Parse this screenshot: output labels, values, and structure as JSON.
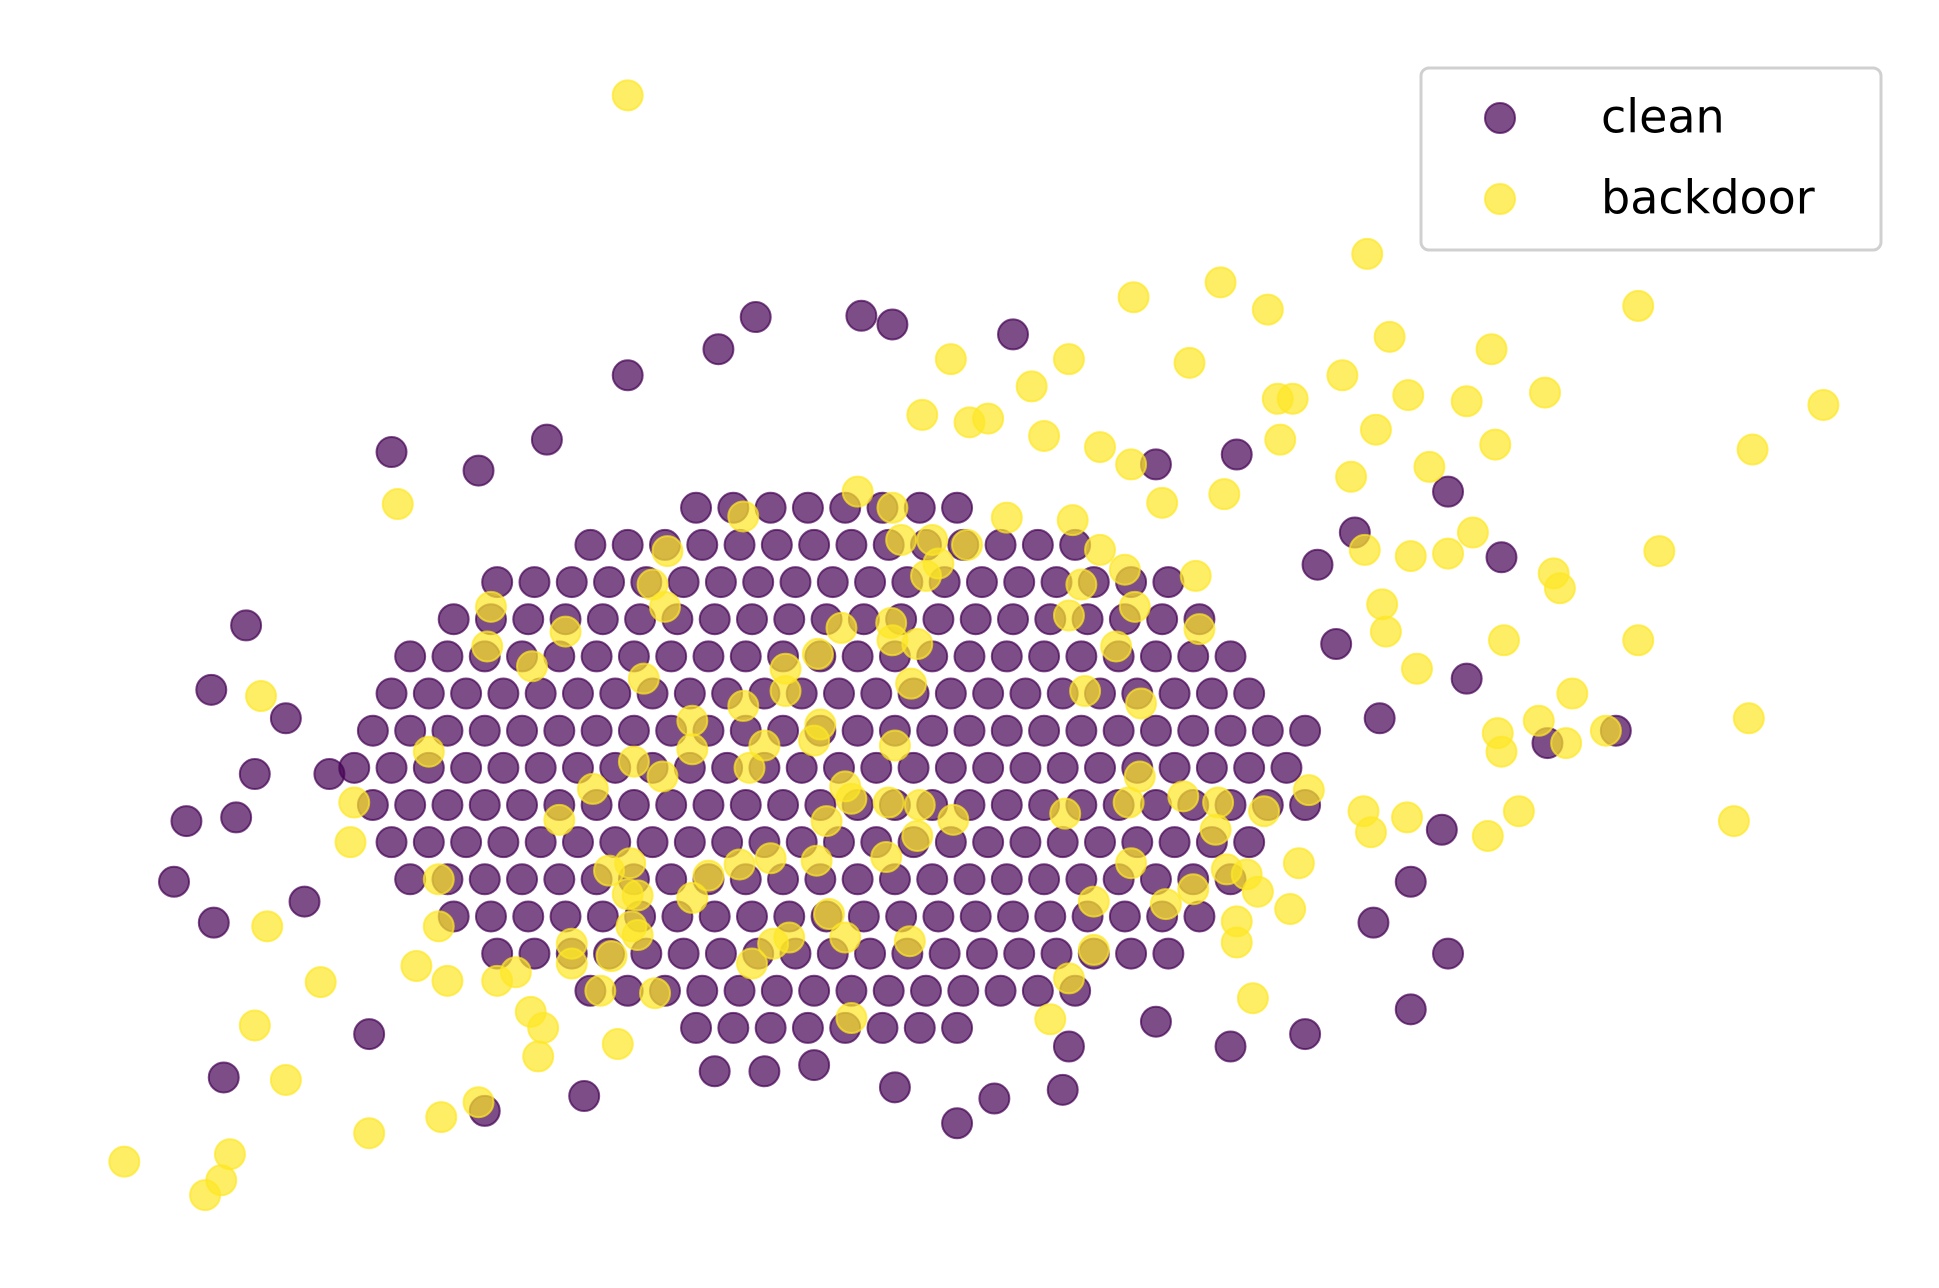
{
  "chart_data": {
    "type": "scatter",
    "xlim": [
      0,
      156
    ],
    "ylim": [
      0,
      104
    ],
    "legend": "upper right",
    "alpha": 0.7,
    "series": [
      {
        "name": "clean",
        "color": "#440154",
        "x": [
          56,
          59,
          62,
          65,
          68,
          71,
          74,
          77,
          47.5,
          50.5,
          53.5,
          56.5,
          59.5,
          62.5,
          65.5,
          68.5,
          71.5,
          74.5,
          77.5,
          80.5,
          83.5,
          86.5,
          40,
          43,
          46,
          49,
          52,
          55,
          58,
          61,
          64,
          67,
          70,
          73,
          76,
          79,
          82,
          85,
          88,
          91,
          94,
          36.5,
          39.5,
          42.5,
          45.5,
          48.5,
          51.5,
          54.5,
          57.5,
          60.5,
          63.5,
          66.5,
          69.5,
          72.5,
          75.5,
          78.5,
          81.5,
          84.5,
          87.5,
          90.5,
          93.5,
          96.5,
          33,
          36,
          39,
          42,
          45,
          48,
          51,
          54,
          57,
          60,
          63,
          66,
          69,
          72,
          75,
          78,
          81,
          84,
          87,
          90,
          93,
          96,
          99,
          31.5,
          34.5,
          37.5,
          40.5,
          43.5,
          46.5,
          49.5,
          52.5,
          55.5,
          58.5,
          61.5,
          64.5,
          67.5,
          70.5,
          73.5,
          76.5,
          79.5,
          82.5,
          85.5,
          88.5,
          91.5,
          94.5,
          97.5,
          100.5,
          30,
          33,
          36,
          39,
          42,
          45,
          48,
          51,
          54,
          57,
          60,
          63,
          66,
          69,
          72,
          75,
          78,
          81,
          84,
          87,
          90,
          93,
          96,
          99,
          102,
          105,
          28.5,
          31.5,
          34.5,
          37.5,
          40.5,
          43.5,
          46.5,
          49.5,
          52.5,
          55.5,
          58.5,
          61.5,
          64.5,
          67.5,
          70.5,
          73.5,
          76.5,
          79.5,
          82.5,
          85.5,
          88.5,
          91.5,
          94.5,
          97.5,
          100.5,
          103.5,
          30,
          33,
          36,
          39,
          42,
          45,
          48,
          51,
          54,
          57,
          60,
          63,
          66,
          69,
          72,
          75,
          78,
          81,
          84,
          87,
          90,
          93,
          96,
          99,
          102,
          105,
          31.5,
          34.5,
          37.5,
          40.5,
          43.5,
          46.5,
          49.5,
          52.5,
          55.5,
          58.5,
          61.5,
          64.5,
          67.5,
          70.5,
          73.5,
          76.5,
          79.5,
          82.5,
          85.5,
          88.5,
          91.5,
          94.5,
          97.5,
          100.5,
          33,
          36,
          39,
          42,
          45,
          48,
          51,
          54,
          57,
          60,
          63,
          66,
          69,
          72,
          75,
          78,
          81,
          84,
          87,
          90,
          93,
          96,
          99,
          36.5,
          39.5,
          42.5,
          45.5,
          48.5,
          51.5,
          54.5,
          57.5,
          60.5,
          63.5,
          66.5,
          69.5,
          72.5,
          75.5,
          78.5,
          81.5,
          84.5,
          87.5,
          90.5,
          93.5,
          96.5,
          40,
          43,
          46,
          49,
          52,
          55,
          58,
          61,
          64,
          67,
          70,
          73,
          76,
          79,
          82,
          85,
          88,
          91,
          94,
          47.5,
          50.5,
          53.5,
          56.5,
          59.5,
          62.5,
          65.5,
          68.5,
          71.5,
          74.5,
          77.5,
          80.5,
          83.5,
          86.5,
          56,
          59,
          62,
          65,
          68,
          71,
          74,
          77,
          14,
          15,
          17,
          19.8,
          18,
          17.2,
          24.5,
          31.5,
          50.5,
          60.8,
          69.3,
          71.8,
          81.5,
          57.8,
          99.5,
          116.5,
          120.8,
          118,
          130,
          113.5,
          116.5,
          105,
          99,
          85.5,
          77,
          80,
          72,
          61.5,
          47,
          39,
          29.7,
          110.5,
          113.5,
          116,
          111,
          109,
          93,
          44,
          38.5,
          23,
          20.5,
          19,
          26.5,
          124.5,
          106,
          107.5,
          93,
          86,
          57.5,
          65.5
        ],
        "values": [
          21,
          21,
          21,
          21,
          21,
          21,
          21,
          21,
          24,
          24,
          24,
          24,
          24,
          24,
          24,
          24,
          24,
          24,
          24,
          24,
          24,
          24,
          27,
          27,
          27,
          27,
          27,
          27,
          27,
          27,
          27,
          27,
          27,
          27,
          27,
          27,
          27,
          27,
          27,
          27,
          27,
          30,
          30,
          30,
          30,
          30,
          30,
          30,
          30,
          30,
          30,
          30,
          30,
          30,
          30,
          30,
          30,
          30,
          30,
          30,
          30,
          30,
          33,
          33,
          33,
          33,
          33,
          33,
          33,
          33,
          33,
          33,
          33,
          33,
          33,
          33,
          33,
          33,
          33,
          33,
          33,
          33,
          33,
          33,
          33,
          36,
          36,
          36,
          36,
          36,
          36,
          36,
          36,
          36,
          36,
          36,
          36,
          36,
          36,
          36,
          36,
          36,
          36,
          36,
          36,
          36,
          36,
          36,
          36,
          39,
          39,
          39,
          39,
          39,
          39,
          39,
          39,
          39,
          39,
          39,
          39,
          39,
          39,
          39,
          39,
          39,
          39,
          39,
          39,
          39,
          39,
          39,
          39,
          39,
          39,
          42,
          42,
          42,
          42,
          42,
          42,
          42,
          42,
          42,
          42,
          42,
          42,
          42,
          42,
          42,
          42,
          42,
          42,
          42,
          42,
          42,
          42,
          42,
          42,
          42,
          42,
          45,
          45,
          45,
          45,
          45,
          45,
          45,
          45,
          45,
          45,
          45,
          45,
          45,
          45,
          45,
          45,
          45,
          45,
          45,
          45,
          45,
          45,
          45,
          45,
          45,
          45,
          48,
          48,
          48,
          48,
          48,
          48,
          48,
          48,
          48,
          48,
          48,
          48,
          48,
          48,
          48,
          48,
          48,
          48,
          48,
          48,
          48,
          48,
          48,
          48,
          51,
          51,
          51,
          51,
          51,
          51,
          51,
          51,
          51,
          51,
          51,
          51,
          51,
          51,
          51,
          51,
          51,
          51,
          51,
          51,
          51,
          51,
          51,
          54,
          54,
          54,
          54,
          54,
          54,
          54,
          54,
          54,
          54,
          54,
          54,
          54,
          54,
          54,
          54,
          54,
          54,
          54,
          54,
          54,
          57,
          57,
          57,
          57,
          57,
          57,
          57,
          57,
          57,
          57,
          57,
          57,
          57,
          57,
          57,
          57,
          57,
          57,
          57,
          60,
          60,
          60,
          60,
          60,
          60,
          60,
          60,
          60,
          60,
          60,
          60,
          60,
          60,
          63,
          63,
          63,
          63,
          63,
          63,
          63,
          63,
          32.8,
          37.7,
          48.3,
          53.5,
          17,
          29.5,
          31.2,
          67.5,
          73.7,
          78.4,
          78.5,
          77.8,
          77,
          75.8,
          67.3,
          64.3,
          59,
          49.2,
          45,
          22.5,
          27,
          20.5,
          19.5,
          16,
          13.3,
          15.3,
          16.2,
          17.5,
          15.5,
          14.3,
          20.5,
          29.5,
          32.8,
          37,
          46,
          61,
          66.5,
          68.5,
          66,
          46,
          41.5,
          38,
          41.5,
          44,
          58.4,
          52,
          21.5,
          19.5,
          17.5,
          18
        ]
      },
      {
        "name": "backdoor",
        "color": "#fde725",
        "x": [
          50.5,
          91.2,
          98.2,
          102,
          110,
          131.8,
          111.8,
          120,
          146.7,
          141,
          124.3,
          118,
          113.3,
          108,
          104,
          102.8,
          95.7,
          86,
          83,
          76.5,
          74.2,
          78,
          79.5,
          84,
          88.5,
          91,
          103,
          110.7,
          120.3,
          108.7,
          115,
          98.5,
          93.5,
          118.5,
          116.5,
          113.5,
          109.8,
          133.5,
          125,
          125.5,
          111.2,
          111.5,
          121,
          131.8,
          114,
          126.5,
          140.7,
          123.8,
          120.5,
          120.8,
          126,
          129.2,
          122.2,
          119.7,
          139.5,
          109.7,
          110.3,
          113.2,
          105.3,
          101.7,
          98,
          97.8,
          95.2,
          90.8,
          91.7,
          91,
          96,
          98.7,
          100.3,
          101.2,
          103.8,
          104.5,
          99.5,
          99.5,
          100.8,
          93.8,
          88,
          88,
          86,
          84.5,
          85.7,
          91.8,
          87.3,
          89.8,
          86,
          87,
          91.3,
          96.5,
          96.2,
          90.5,
          88.5,
          86.3,
          81,
          77.8,
          75,
          74.5,
          75.5,
          72.5,
          71.8,
          69,
          59.8,
          53.7,
          52.5,
          53.5,
          39.5,
          39.2,
          42.8,
          45.5,
          51.8,
          67.7,
          65.8,
          63.2,
          63.2,
          71.7,
          71.8,
          73.8,
          73.3,
          72,
          66,
          65.5,
          61.5,
          60.3,
          59.8,
          55.7,
          55.7,
          53.3,
          51,
          47.7,
          45,
          34.5,
          28.5,
          28.2,
          21,
          32,
          35.3,
          35.3,
          33.5,
          36,
          40,
          41.5,
          42.7,
          43.7,
          43.3,
          38.5,
          35.5,
          29.7,
          23,
          20.5,
          21.5,
          25.8,
          18.5,
          17.8,
          16.5,
          10,
          46,
          46,
          49.2,
          48.3,
          49.7,
          52.7,
          50.8,
          51.3,
          50.5,
          49,
          50.7,
          51.3,
          55.7,
          57,
          59.5,
          62,
          65.7,
          66.7,
          68,
          63.5,
          62.2,
          60.5,
          73.2,
          71.3,
          73.8,
          74,
          76.7,
          71.5,
          68.5,
          66.5,
          68,
          68.5
        ],
        "values": [
          96.3,
          80,
          81.2,
          79,
          83.5,
          79.3,
          76.8,
          75.8,
          71.3,
          67.7,
          72.3,
          71.6,
          72.1,
          73.7,
          71.8,
          71.8,
          74.7,
          75,
          72.8,
          75,
          70.5,
          69.9,
          70.2,
          68.8,
          67.9,
          66.5,
          68.5,
          69.3,
          68.1,
          65.5,
          66.3,
          64.1,
          63.4,
          61,
          59.3,
          59.1,
          59.6,
          59.5,
          57.7,
          56.5,
          55.2,
          53,
          52.3,
          52.3,
          50,
          48,
          46,
          45.8,
          44.8,
          43.3,
          44,
          45,
          38.5,
          36.5,
          37.7,
          38.5,
          36.8,
          38,
          40.2,
          38.5,
          39.2,
          37,
          39.7,
          39.2,
          41.3,
          34.3,
          32.2,
          33.8,
          33.4,
          32,
          30.6,
          34.3,
          29.6,
          27.9,
          23.4,
          31,
          31.2,
          27.3,
          25,
          21.7,
          38.3,
          47.2,
          48.2,
          51.8,
          54.3,
          56.8,
          55,
          53.2,
          57.5,
          58,
          59.6,
          62,
          62.2,
          60,
          60.4,
          57.5,
          58.5,
          60.4,
          63,
          64.3,
          62.3,
          59.5,
          56.8,
          55,
          55,
          51.8,
          50.2,
          53,
          49.2,
          53.3,
          51.2,
          50,
          48.2,
          53.7,
          52.3,
          52,
          48.8,
          43.8,
          45.5,
          44.2,
          43.8,
          42,
          47,
          45.8,
          43.5,
          41.3,
          42.5,
          40.3,
          37.8,
          43.3,
          39.2,
          36,
          47.8,
          63.3,
          33,
          29.2,
          26,
          24.8,
          24.8,
          25.5,
          22.3,
          21,
          18.7,
          15,
          13.8,
          12.5,
          16.8,
          21.2,
          29.2,
          24.7,
          10.8,
          8.7,
          7.5,
          10.2,
          27.8,
          26.2,
          26.8,
          24,
          19.7,
          23.8,
          29.2,
          28.5,
          31.8,
          33.7,
          34.3,
          31.7,
          31.5,
          33.3,
          34.2,
          34.7,
          34.5,
          30.2,
          28.3,
          28.3,
          27.8,
          26.2,
          28,
          34.8,
          36.5,
          39,
          37.8,
          39.2,
          39.5,
          37.7,
          40.5,
          21.8
        ]
      }
    ]
  }
}
